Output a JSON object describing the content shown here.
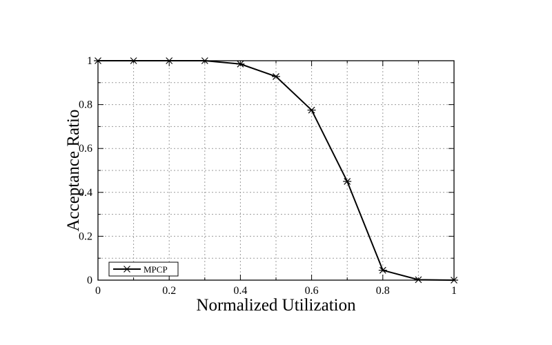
{
  "chart_data": {
    "type": "line",
    "title": "",
    "xlabel": "Normalized Utilization",
    "ylabel": "Acceptance Ratio",
    "xlim": [
      0,
      1
    ],
    "ylim": [
      0,
      1
    ],
    "x_ticks": [
      0,
      0.2,
      0.4,
      0.6,
      0.8,
      1
    ],
    "x_tick_labels": [
      "0",
      "0.2",
      "0.4",
      "0.6",
      "0.8",
      "1"
    ],
    "y_ticks": [
      0,
      0.2,
      0.4,
      0.6,
      0.8,
      1
    ],
    "y_tick_labels": [
      "0",
      "0.2",
      "0.4",
      "0.6",
      "0.8",
      "1"
    ],
    "grid": true,
    "legend_position": "bottom-left",
    "series": [
      {
        "name": "MPCP",
        "marker": "asterisk",
        "color": "#000000",
        "x": [
          0,
          0.1,
          0.2,
          0.3,
          0.4,
          0.5,
          0.6,
          0.7,
          0.8,
          0.9,
          1.0
        ],
        "y": [
          1.0,
          1.0,
          1.0,
          1.0,
          0.985,
          0.928,
          0.775,
          0.45,
          0.045,
          0.002,
          0.0
        ]
      }
    ]
  }
}
